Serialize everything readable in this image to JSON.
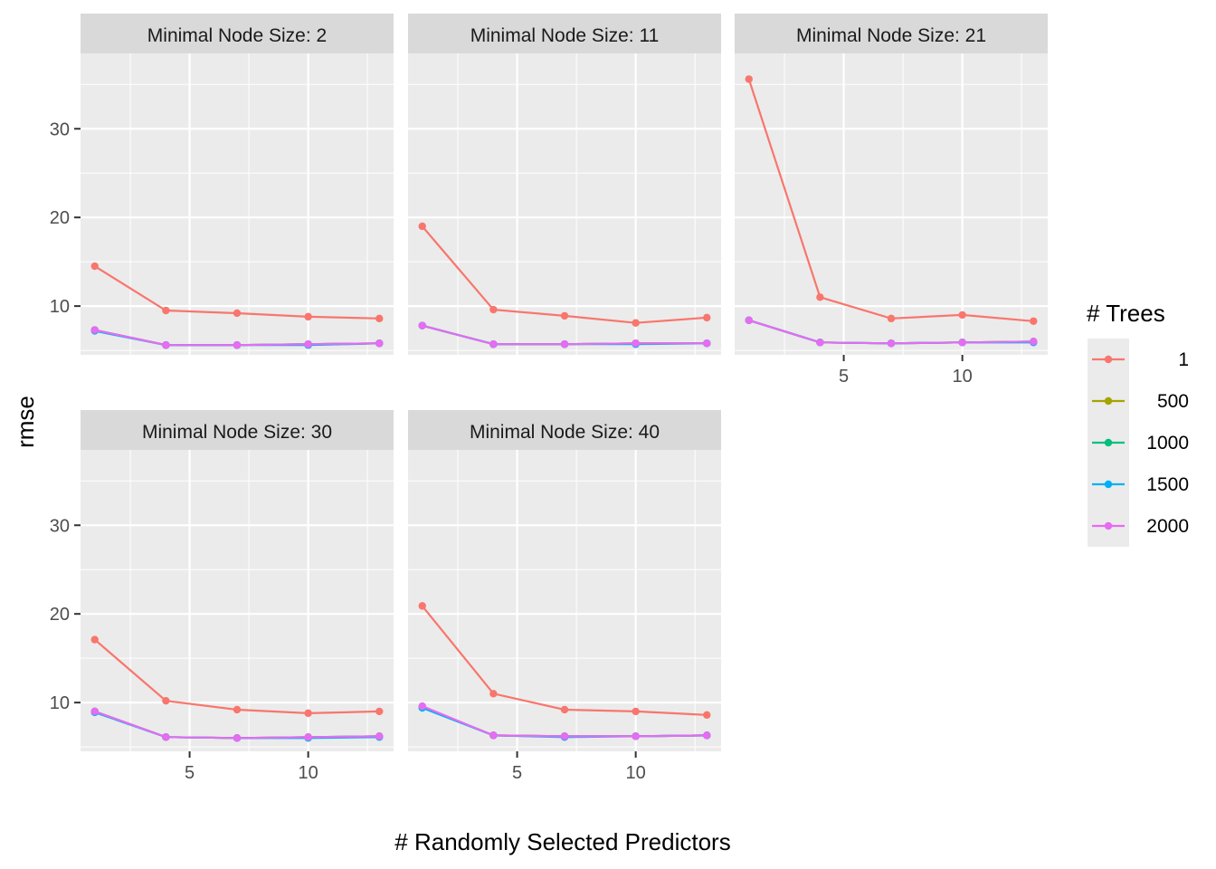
{
  "chart_data": {
    "type": "line",
    "xlabel": "# Randomly Selected Predictors",
    "ylabel": "rmse",
    "xlim": [
      0.4,
      13.6
    ],
    "ylim": [
      4.5,
      38.5
    ],
    "x_ticks": [
      5,
      10
    ],
    "y_ticks": [
      10,
      20,
      30
    ],
    "x_minor_ticks": [
      2.5,
      7.5,
      12.5
    ],
    "y_minor_ticks": [
      5,
      15,
      25,
      35
    ],
    "grid": true,
    "legend": {
      "title": "# Trees",
      "position": "right",
      "entries": [
        {
          "label": "1",
          "color": "#F8766D"
        },
        {
          "label": "500",
          "color": "#A3A500"
        },
        {
          "label": "1000",
          "color": "#00BF7D"
        },
        {
          "label": "1500",
          "color": "#00B0F6"
        },
        {
          "label": "2000",
          "color": "#E76BF3"
        }
      ]
    },
    "x": [
      1,
      4,
      7,
      10,
      13
    ],
    "facets": [
      {
        "label": "Minimal Node Size: 2",
        "series": [
          {
            "name": "1",
            "values": [
              14.5,
              9.5,
              9.2,
              8.8,
              8.6
            ]
          },
          {
            "name": "500",
            "values": [
              7.3,
              5.6,
              5.6,
              5.7,
              5.8
            ]
          },
          {
            "name": "1000",
            "values": [
              7.3,
              5.6,
              5.6,
              5.7,
              5.8
            ]
          },
          {
            "name": "1500",
            "values": [
              7.2,
              5.6,
              5.6,
              5.6,
              5.8
            ]
          },
          {
            "name": "2000",
            "values": [
              7.3,
              5.6,
              5.6,
              5.7,
              5.8
            ]
          }
        ]
      },
      {
        "label": "Minimal Node Size: 11",
        "series": [
          {
            "name": "1",
            "values": [
              19.0,
              9.6,
              8.9,
              8.1,
              8.7
            ]
          },
          {
            "name": "500",
            "values": [
              7.8,
              5.7,
              5.7,
              5.8,
              5.8
            ]
          },
          {
            "name": "1000",
            "values": [
              7.8,
              5.7,
              5.7,
              5.8,
              5.8
            ]
          },
          {
            "name": "1500",
            "values": [
              7.8,
              5.7,
              5.7,
              5.7,
              5.8
            ]
          },
          {
            "name": "2000",
            "values": [
              7.8,
              5.7,
              5.7,
              5.8,
              5.8
            ]
          }
        ]
      },
      {
        "label": "Minimal Node Size: 21",
        "series": [
          {
            "name": "1",
            "values": [
              35.6,
              11.0,
              8.6,
              9.0,
              8.3
            ]
          },
          {
            "name": "500",
            "values": [
              8.4,
              5.9,
              5.8,
              5.9,
              6.0
            ]
          },
          {
            "name": "1000",
            "values": [
              8.4,
              5.9,
              5.8,
              5.9,
              6.0
            ]
          },
          {
            "name": "1500",
            "values": [
              8.4,
              5.9,
              5.8,
              5.9,
              5.9
            ]
          },
          {
            "name": "2000",
            "values": [
              8.4,
              5.9,
              5.8,
              5.9,
              6.0
            ]
          }
        ]
      },
      {
        "label": "Minimal Node Size: 30",
        "series": [
          {
            "name": "1",
            "values": [
              17.1,
              10.2,
              9.2,
              8.8,
              9.0
            ]
          },
          {
            "name": "500",
            "values": [
              9.0,
              6.1,
              6.0,
              6.1,
              6.2
            ]
          },
          {
            "name": "1000",
            "values": [
              9.0,
              6.1,
              6.0,
              6.1,
              6.2
            ]
          },
          {
            "name": "1500",
            "values": [
              8.9,
              6.1,
              6.0,
              6.0,
              6.1
            ]
          },
          {
            "name": "2000",
            "values": [
              9.0,
              6.1,
              6.0,
              6.1,
              6.2
            ]
          }
        ]
      },
      {
        "label": "Minimal Node Size: 40",
        "series": [
          {
            "name": "1",
            "values": [
              20.9,
              11.0,
              9.2,
              9.0,
              8.6
            ]
          },
          {
            "name": "500",
            "values": [
              9.5,
              6.3,
              6.2,
              6.2,
              6.3
            ]
          },
          {
            "name": "1000",
            "values": [
              9.5,
              6.3,
              6.2,
              6.2,
              6.3
            ]
          },
          {
            "name": "1500",
            "values": [
              9.4,
              6.3,
              6.1,
              6.2,
              6.3
            ]
          },
          {
            "name": "2000",
            "values": [
              9.6,
              6.3,
              6.2,
              6.2,
              6.3
            ]
          }
        ]
      }
    ]
  }
}
